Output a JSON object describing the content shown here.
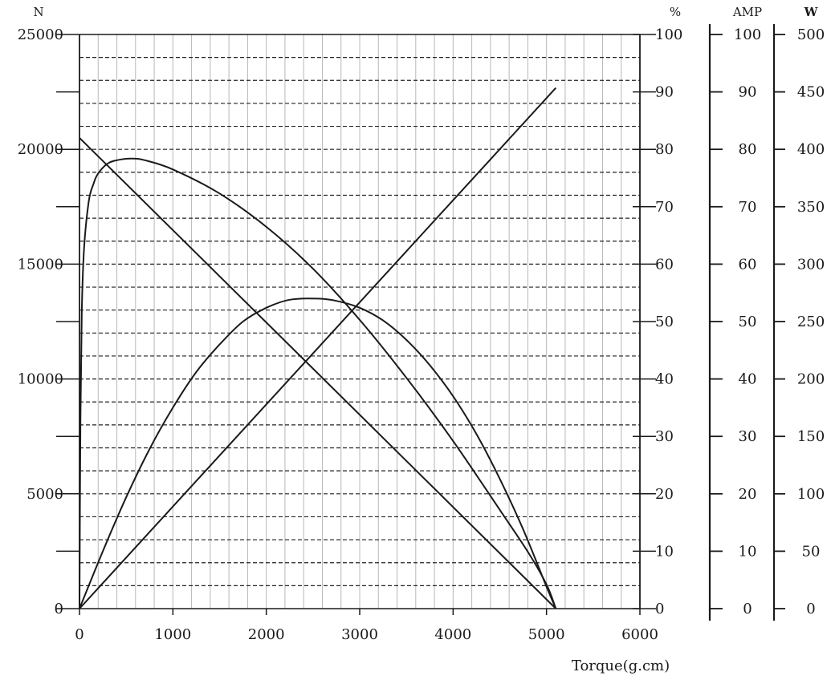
{
  "chart_data": {
    "type": "line",
    "xlabel": "Torque(g.cm)",
    "xlim": [
      0,
      6000
    ],
    "x_ticks": [
      "0",
      "1000",
      "2000",
      "3000",
      "4000",
      "5000",
      "6000"
    ],
    "grid": true,
    "axes": {
      "speed": {
        "unit": "N",
        "range": [
          0,
          25000
        ],
        "ticks": [
          "0",
          "5000",
          "10000",
          "15000",
          "20000",
          "25000"
        ]
      },
      "efficiency": {
        "unit": "%",
        "range": [
          0,
          100
        ],
        "ticks": [
          "0",
          "10",
          "20",
          "30",
          "40",
          "50",
          "60",
          "70",
          "80",
          "90",
          "100"
        ]
      },
      "current": {
        "unit": "AMP",
        "range": [
          0,
          100
        ],
        "ticks": [
          "0",
          "10",
          "20",
          "30",
          "40",
          "50",
          "60",
          "70",
          "80",
          "90",
          "100"
        ]
      },
      "power": {
        "unit": "W",
        "range": [
          0,
          500
        ],
        "ticks": [
          "0",
          "50",
          "100",
          "150",
          "200",
          "250",
          "300",
          "350",
          "400",
          "450",
          "500"
        ]
      }
    },
    "series": [
      {
        "axis": "speed",
        "x": [
          0,
          5100
        ],
        "y": [
          20500,
          0
        ]
      },
      {
        "axis": "current",
        "x": [
          0,
          5100
        ],
        "y": [
          0,
          90.7
        ]
      },
      {
        "axis": "efficiency",
        "x": [
          0,
          10,
          25,
          50,
          100,
          150,
          200,
          300,
          400,
          550,
          700,
          1000,
          1500,
          2000,
          2500,
          3000,
          3500,
          4000,
          4500,
          4800,
          5000,
          5100
        ],
        "y": [
          0,
          33,
          52,
          63,
          71,
          74,
          75.8,
          77.5,
          78.1,
          78.4,
          78.1,
          76.5,
          72.3,
          66.5,
          59.2,
          50.3,
          40.2,
          29.2,
          17.2,
          9.9,
          4.2,
          0
        ]
      },
      {
        "axis": "power",
        "x": [
          0,
          250,
          500,
          750,
          1000,
          1250,
          1500,
          1750,
          2000,
          2250,
          2550,
          2750,
          3000,
          3250,
          3500,
          3750,
          4000,
          4250,
          4500,
          4750,
          5000,
          5100
        ],
        "y": [
          0,
          50,
          97,
          139,
          175,
          206,
          230,
          250,
          262,
          269,
          270,
          268,
          262,
          251,
          234,
          212,
          185,
          152,
          113,
          69,
          19,
          0
        ]
      }
    ]
  }
}
